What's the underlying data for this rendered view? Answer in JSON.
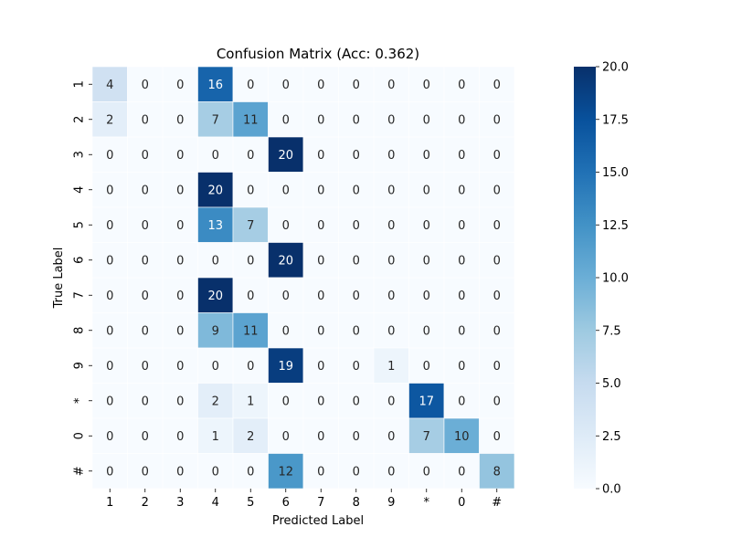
{
  "chart_data": {
    "type": "heatmap",
    "title": "Confusion Matrix (Acc: 0.362)",
    "xlabel": "Predicted Label",
    "ylabel": "True Label",
    "x_categories": [
      "1",
      "2",
      "3",
      "4",
      "5",
      "6",
      "7",
      "8",
      "9",
      "*",
      "0",
      "#"
    ],
    "y_categories": [
      "1",
      "2",
      "3",
      "4",
      "5",
      "6",
      "7",
      "8",
      "9",
      "*",
      "0",
      "#"
    ],
    "values": [
      [
        4,
        0,
        0,
        16,
        0,
        0,
        0,
        0,
        0,
        0,
        0,
        0
      ],
      [
        2,
        0,
        0,
        7,
        11,
        0,
        0,
        0,
        0,
        0,
        0,
        0
      ],
      [
        0,
        0,
        0,
        0,
        0,
        20,
        0,
        0,
        0,
        0,
        0,
        0
      ],
      [
        0,
        0,
        0,
        20,
        0,
        0,
        0,
        0,
        0,
        0,
        0,
        0
      ],
      [
        0,
        0,
        0,
        13,
        7,
        0,
        0,
        0,
        0,
        0,
        0,
        0
      ],
      [
        0,
        0,
        0,
        0,
        0,
        20,
        0,
        0,
        0,
        0,
        0,
        0
      ],
      [
        0,
        0,
        0,
        20,
        0,
        0,
        0,
        0,
        0,
        0,
        0,
        0
      ],
      [
        0,
        0,
        0,
        9,
        11,
        0,
        0,
        0,
        0,
        0,
        0,
        0
      ],
      [
        0,
        0,
        0,
        0,
        0,
        19,
        0,
        0,
        1,
        0,
        0,
        0
      ],
      [
        0,
        0,
        0,
        2,
        1,
        0,
        0,
        0,
        0,
        17,
        0,
        0
      ],
      [
        0,
        0,
        0,
        1,
        2,
        0,
        0,
        0,
        0,
        7,
        10,
        0
      ],
      [
        0,
        0,
        0,
        0,
        0,
        12,
        0,
        0,
        0,
        0,
        0,
        8
      ]
    ],
    "colormap": "Blues",
    "color_range": [
      0,
      20
    ],
    "colorbar_ticks": [
      "0.0",
      "2.5",
      "5.0",
      "7.5",
      "10.0",
      "12.5",
      "15.0",
      "17.5",
      "20.0"
    ],
    "colors": {
      "low": "#f7fbff",
      "high": "#08306b",
      "text_dark": "#262626",
      "text_light": "#ffffff"
    }
  }
}
